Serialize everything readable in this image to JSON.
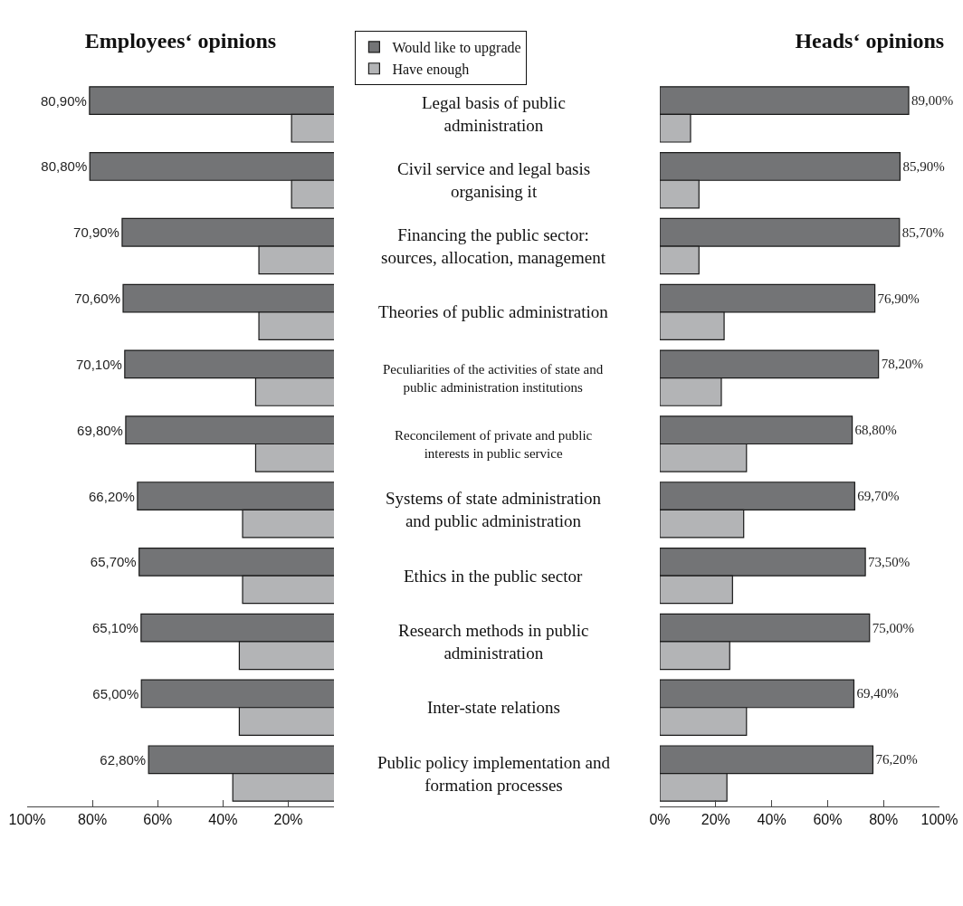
{
  "chart_data": [
    {
      "type": "bar",
      "orientation": "horizontal",
      "title": "Employees‘ opinions",
      "legend": "top right",
      "categories": [
        "Legal basis of public administration",
        "Civil service and legal basis organising it",
        "Financing the public sector: sources, allocation, management",
        "Theories of public administration",
        "Peculiarities of the activities of state and public administration institutions",
        "Reconcilement of private and public interests in public service",
        "Systems of state administration and public administration",
        "Ethics in the public sector",
        "Research methods in public administration",
        "Inter-state relations",
        "Public policy implementation and formation processes"
      ],
      "series": [
        {
          "name": "Would like to upgrade",
          "color": "#737476",
          "values": [
            80.9,
            80.8,
            70.9,
            70.6,
            70.1,
            69.8,
            66.2,
            65.7,
            65.1,
            65.0,
            62.8
          ],
          "value_labels": [
            "80,90%",
            "80,80%",
            "70,90%",
            "70,60%",
            "70,10%",
            "69,80%",
            "66,20%",
            "65,70%",
            "65,10%",
            "65,00%",
            "62,80%"
          ]
        },
        {
          "name": "Have enough",
          "color": "#b3b4b6",
          "values": [
            19,
            19,
            29,
            29,
            30,
            30,
            34,
            34,
            35,
            35,
            37
          ]
        }
      ],
      "xlim": [
        100,
        6
      ],
      "xticks": [
        {
          "value": 100,
          "label": "100%"
        },
        {
          "value": 80,
          "label": "80%"
        },
        {
          "value": 60,
          "label": "60%"
        },
        {
          "value": 40,
          "label": "40%"
        },
        {
          "value": 20,
          "label": "20%"
        }
      ],
      "grid": false
    },
    {
      "type": "bar",
      "orientation": "horizontal",
      "title": "Heads‘ opinions",
      "tick_labels": "x",
      "series": [
        {
          "color": "#737476",
          "values": [
            89.0,
            85.9,
            85.7,
            76.9,
            78.2,
            68.8,
            69.7,
            73.5,
            75.0,
            69.4,
            76.2
          ],
          "value_labels": [
            "89,00%",
            "85,90%",
            "85,70%",
            "76,90%",
            "78,20%",
            "68,80%",
            "69,70%",
            "73,50%",
            "75,00%",
            "69,40%",
            "76,20%"
          ]
        },
        {
          "color": "#b3b4b6",
          "values": [
            11,
            14,
            14,
            23,
            22,
            31,
            30,
            26,
            25,
            31,
            24
          ]
        }
      ],
      "xlim": [
        0,
        100
      ],
      "xticks": [
        {
          "value": 0,
          "label": "0%"
        },
        {
          "value": 20,
          "label": "20%"
        },
        {
          "value": 40,
          "label": "40%"
        },
        {
          "value": 60,
          "label": "60%"
        },
        {
          "value": 80,
          "label": "80%"
        },
        {
          "value": 100,
          "label": "100%"
        }
      ],
      "grid": false
    }
  ]
}
